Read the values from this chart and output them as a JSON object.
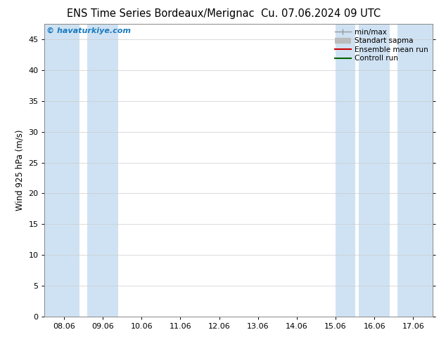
{
  "title_left": "ENS Time Series Bordeaux/Merignac",
  "title_right": "Cu. 07.06.2024 09 UTC",
  "ylabel": "Wind 925 hPa (m/s)",
  "ylim": [
    0,
    47.5
  ],
  "yticks": [
    0,
    5,
    10,
    15,
    20,
    25,
    30,
    35,
    40,
    45
  ],
  "xtick_labels": [
    "08.06",
    "09.06",
    "10.06",
    "11.06",
    "12.06",
    "13.06",
    "14.06",
    "15.06",
    "16.06",
    "17.06"
  ],
  "xlim": [
    -0.5,
    9.5
  ],
  "shaded_regions": [
    [
      -0.5,
      0.4
    ],
    [
      0.6,
      1.4
    ],
    [
      7.0,
      7.5
    ],
    [
      7.6,
      8.4
    ],
    [
      8.6,
      9.5
    ]
  ],
  "band_color": "#cfe2f3",
  "watermark": "© havaturkiye.com",
  "watermark_color": "#1a7abf",
  "legend_entries": [
    "min/max",
    "Standart sapma",
    "Ensemble mean run",
    "Controll run"
  ],
  "legend_colors": [
    "#999999",
    "#bbbbbb",
    "#cc0000",
    "#006600"
  ],
  "bg_color": "#ffffff",
  "grid_color": "#cccccc",
  "title_fontsize": 10.5,
  "tick_fontsize": 8,
  "ylabel_fontsize": 8.5
}
